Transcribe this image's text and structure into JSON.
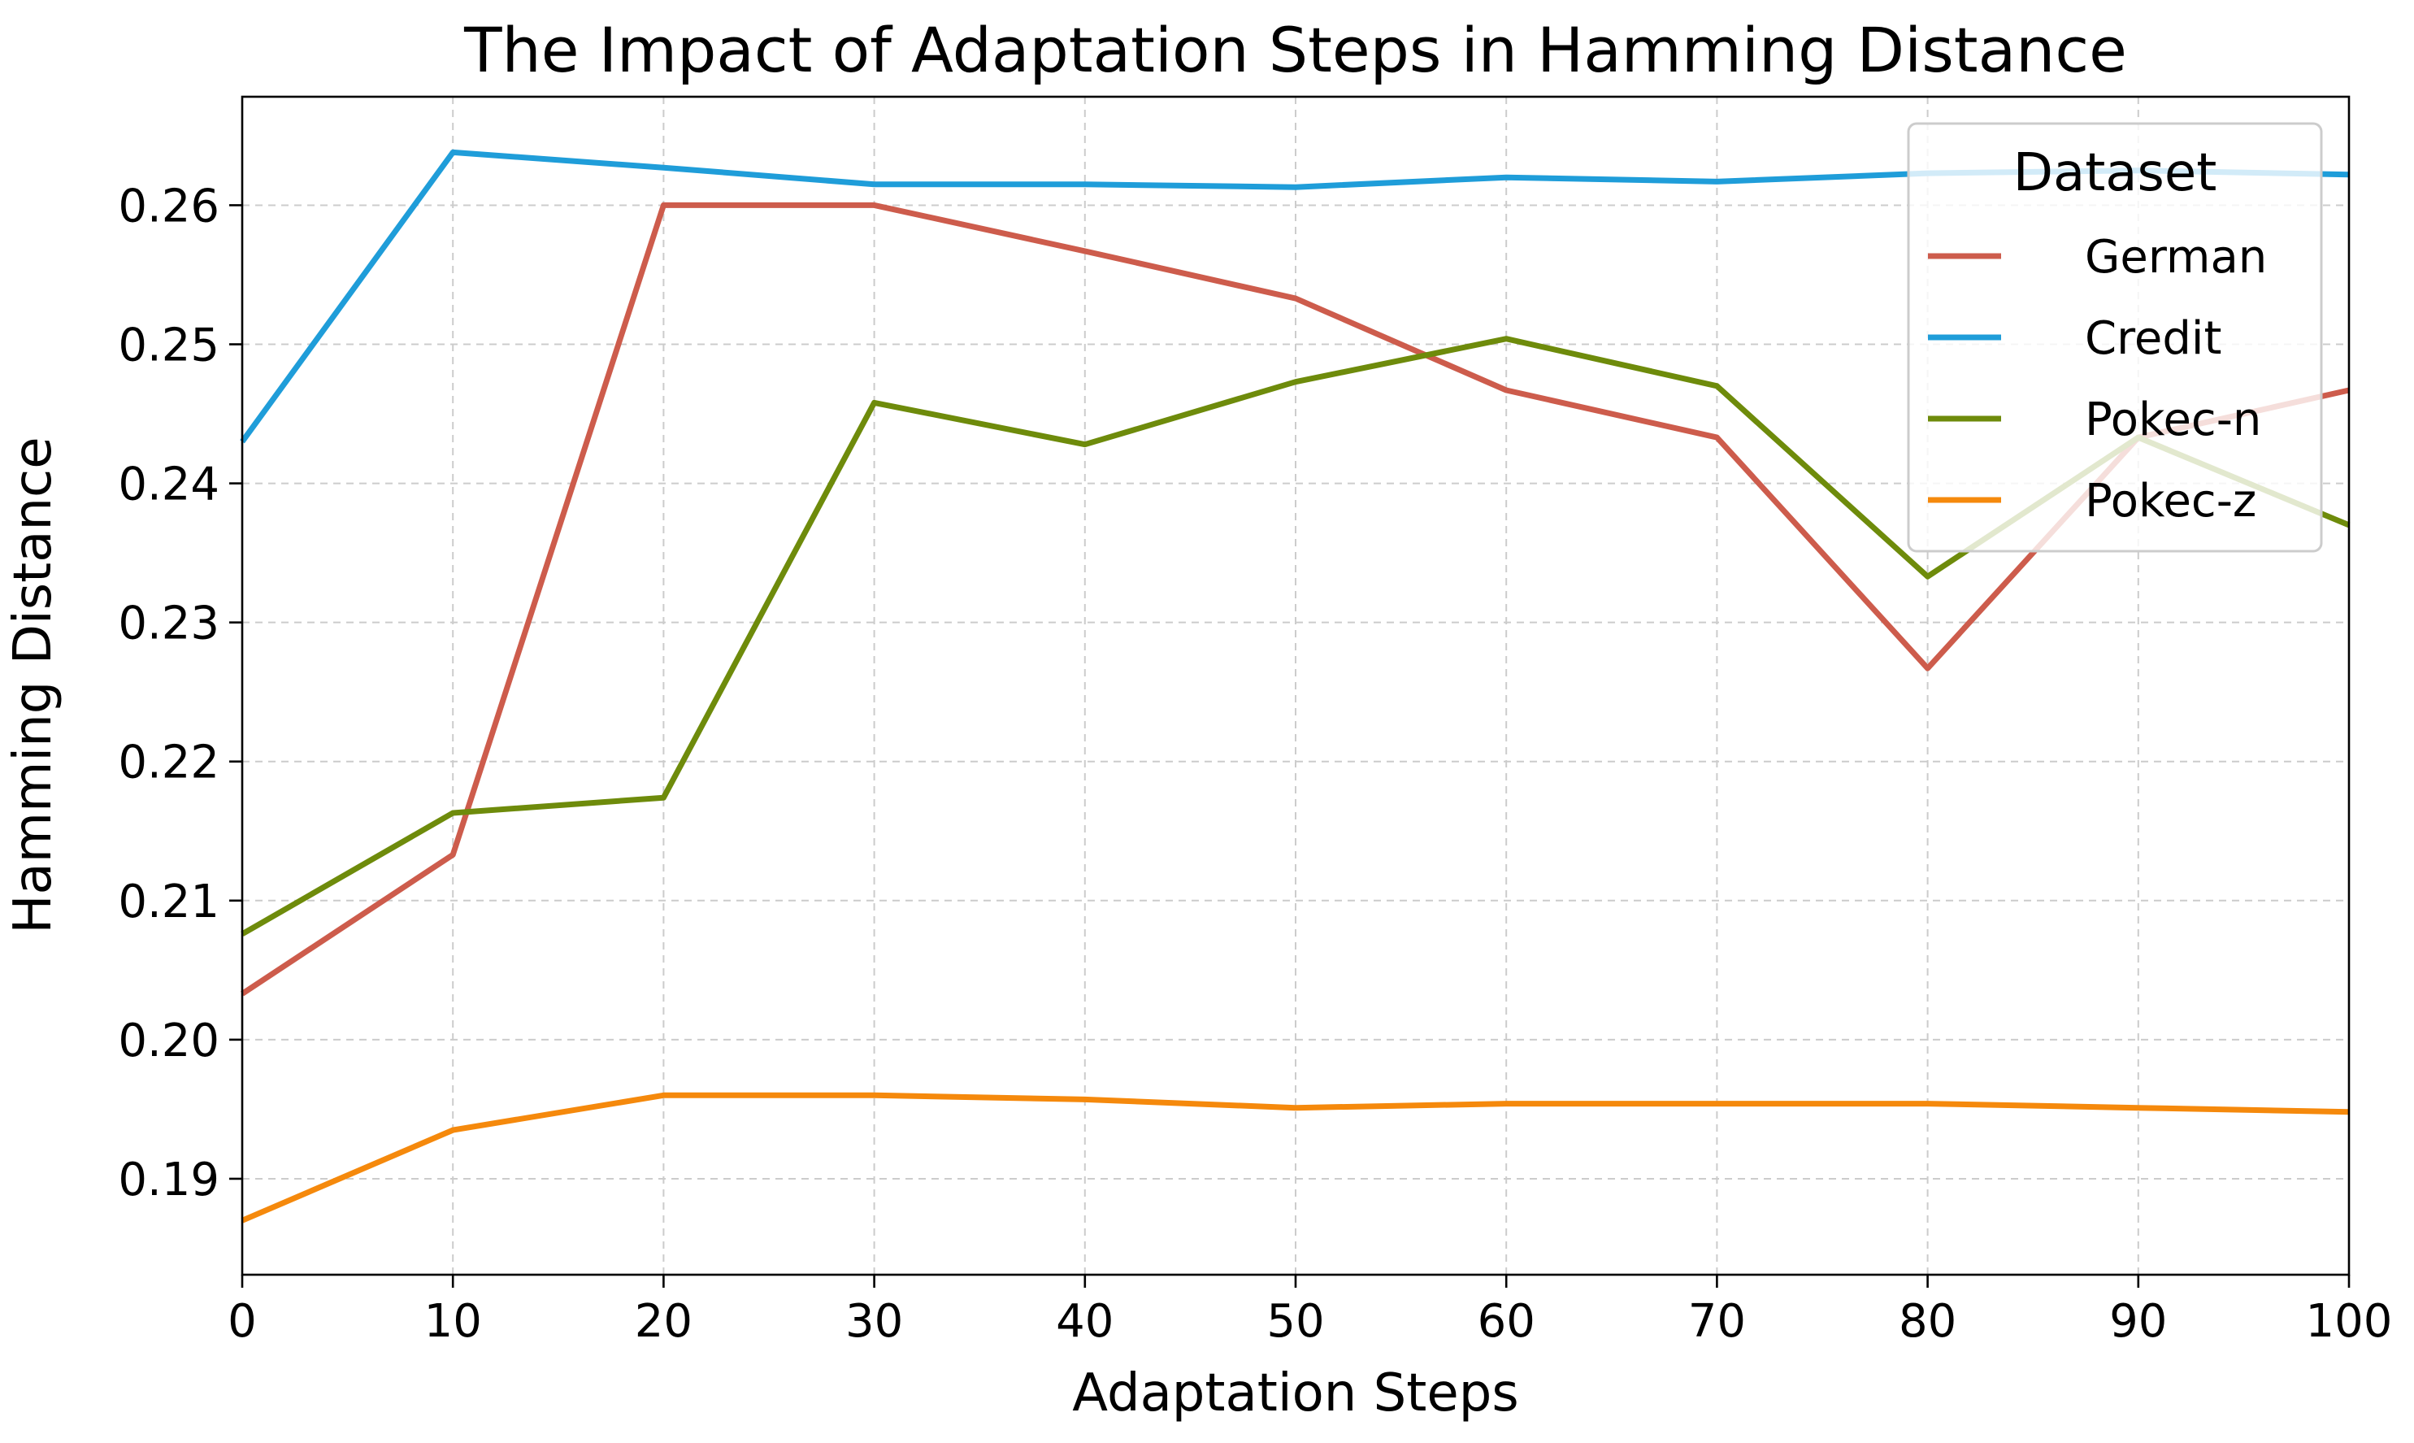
{
  "chart_data": {
    "type": "line",
    "title": "The Impact of Adaptation Steps in Hamming Distance",
    "xlabel": "Adaptation Steps",
    "ylabel": "Hamming Distance",
    "x": [
      0,
      10,
      20,
      30,
      40,
      50,
      60,
      70,
      80,
      90,
      100
    ],
    "xlim": [
      0,
      100
    ],
    "ylim": [
      0.1831,
      0.2678
    ],
    "xticks": [
      0,
      10,
      20,
      30,
      40,
      50,
      60,
      70,
      80,
      90,
      100
    ],
    "xtick_labels": [
      "0",
      "10",
      "20",
      "30",
      "40",
      "50",
      "60",
      "70",
      "80",
      "90",
      "100"
    ],
    "yticks": [
      0.19,
      0.2,
      0.21,
      0.22,
      0.23,
      0.24,
      0.25,
      0.26
    ],
    "ytick_labels": [
      "0.19",
      "0.20",
      "0.21",
      "0.22",
      "0.23",
      "0.24",
      "0.25",
      "0.26"
    ],
    "grid": true,
    "legend": {
      "title": "Dataset",
      "placement": "top-right"
    },
    "series": [
      {
        "name": "German",
        "color": "#cd5c4c",
        "values": [
          0.2033,
          0.2133,
          0.26,
          0.26,
          0.2567,
          0.2533,
          0.2467,
          0.2433,
          0.2267,
          0.2433,
          0.2467
        ]
      },
      {
        "name": "Credit",
        "color": "#1f9dd9",
        "values": [
          0.243,
          0.2638,
          0.2627,
          0.2615,
          0.2615,
          0.2613,
          0.262,
          0.2617,
          0.2623,
          0.2625,
          0.2622
        ]
      },
      {
        "name": "Pokec-n",
        "color": "#6e8b0b",
        "values": [
          0.2076,
          0.2163,
          0.2174,
          0.2458,
          0.2428,
          0.2473,
          0.2504,
          0.247,
          0.2333,
          0.2433,
          0.237
        ]
      },
      {
        "name": "Pokec-z",
        "color": "#f5890c",
        "values": [
          0.187,
          0.1935,
          0.196,
          0.196,
          0.1957,
          0.1951,
          0.1954,
          0.1954,
          0.1954,
          0.1951,
          0.1948
        ]
      }
    ]
  }
}
